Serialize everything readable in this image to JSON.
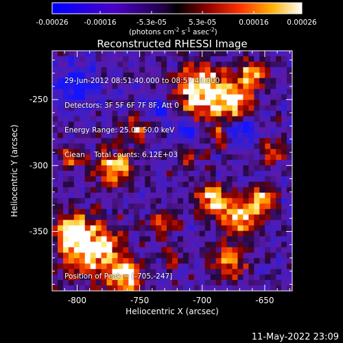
{
  "colorbar": {
    "ticks": [
      "-0.00026",
      "-0.00016",
      "-5.3e-05",
      "5.3e-05",
      "0.00016",
      "0.00026"
    ],
    "tick_values": [
      -0.00026,
      -0.00016,
      -5.3e-05,
      5.3e-05,
      0.00016,
      0.00026
    ],
    "range": [
      -0.00026,
      0.00026
    ],
    "units_text": "(photons cm",
    "units_exp1": "-2",
    "units_mid": " s",
    "units_exp2": "-1",
    "units_mid2": " asec",
    "units_exp3": "-2",
    "units_end": ")"
  },
  "title": "Reconstructed RHESSI Image",
  "info": {
    "line1": "29-Jun-2012 08:51:40.000 to 08:57:40.000",
    "line2": "Detectors: 3F 5F 6F 7F 8F, Att 0",
    "line3": "Energy Range: 25.0 - 50.0 keV",
    "line4": "Clean    Total counts: 6.12E+03"
  },
  "peak_label": "Position of Peak = [-705,-247]",
  "axes": {
    "xlabel": "Heliocentric X (arcsec)",
    "ylabel": "Heliocentric Y (arcsec)",
    "xrange": [
      -820,
      -628
    ],
    "yrange": [
      -395,
      -213
    ],
    "xticks": [
      -800,
      -750,
      -700,
      -650
    ],
    "xtick_labels": [
      "-800",
      "-750",
      "-700",
      "-650"
    ],
    "yticks": [
      -250,
      -300,
      -350
    ],
    "ytick_labels": [
      "-250",
      "-300",
      "-350"
    ]
  },
  "timestamp": "11-May-2022 23:09"
}
